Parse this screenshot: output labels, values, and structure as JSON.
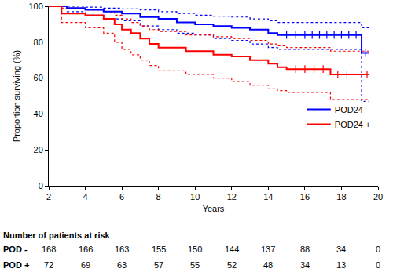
{
  "chart_data": {
    "type": "line",
    "x_label": "Years",
    "y_label": "Proportion surviving (%)",
    "xlim": [
      2,
      20
    ],
    "xticks": [
      2,
      4,
      6,
      8,
      10,
      12,
      14,
      16,
      18,
      20
    ],
    "ylim": [
      0,
      100
    ],
    "yticks": [
      0,
      20,
      40,
      60,
      80,
      100
    ],
    "grid": false,
    "legend": "lower right",
    "series": [
      {
        "name": "POD24 -",
        "color": "#0000ff",
        "line_style": "solid",
        "x": [
          2,
          3,
          4,
          5,
          6,
          7,
          8,
          9,
          10,
          11,
          12,
          13,
          14,
          14.5,
          19.1,
          19.5
        ],
        "values": [
          100,
          99,
          98,
          97,
          96,
          94,
          93,
          91,
          90,
          89,
          88,
          87,
          85,
          84,
          74,
          74
        ],
        "upper": [
          100,
          100,
          99.5,
          99,
          98.5,
          98,
          97,
          96,
          95,
          94.5,
          94,
          93,
          92,
          91,
          88,
          88
        ],
        "lower": [
          100,
          97,
          95,
          93,
          92,
          89,
          87,
          85,
          84,
          82,
          81,
          79,
          77,
          76,
          47,
          47
        ],
        "censored_x": [
          15,
          15.5,
          16,
          16.4,
          16.8,
          17.2,
          17.6,
          18,
          18.4,
          18.8,
          19.3
        ],
        "censored_values": [
          84,
          84,
          84,
          84,
          84,
          84,
          84,
          84,
          84,
          84,
          74
        ]
      },
      {
        "name": "POD24 +",
        "color": "#ff0000",
        "line_style": "solid",
        "x": [
          2,
          2.7,
          4,
          5,
          5.6,
          6,
          6.5,
          7,
          7.5,
          8,
          9.5,
          11,
          12,
          13,
          14,
          14.5,
          15,
          17.4,
          19.5
        ],
        "values": [
          100,
          96,
          95,
          93,
          90,
          87,
          85,
          82,
          79,
          77,
          75,
          73,
          72,
          70,
          68,
          66,
          65,
          62,
          62
        ],
        "upper": [
          100,
          99,
          98,
          97,
          95,
          93,
          91,
          89,
          87,
          86,
          84,
          83,
          82,
          81,
          79,
          78,
          77,
          75,
          75
        ],
        "lower": [
          100,
          91,
          88,
          85,
          80,
          76,
          73,
          70,
          67,
          64,
          62,
          60,
          58,
          56,
          54,
          53,
          52,
          48,
          48
        ],
        "censored_x": [
          15.5,
          16,
          16.5,
          17,
          17.8,
          18.3,
          19.4
        ],
        "censored_values": [
          65,
          65,
          65,
          65,
          62,
          62,
          62
        ]
      }
    ],
    "risk_table": {
      "title": "Number of patients at risk",
      "x": [
        2,
        4,
        6,
        8,
        10,
        12,
        14,
        16,
        18,
        20
      ],
      "rows": [
        {
          "label": "POD -",
          "values": [
            168,
            166,
            163,
            155,
            150,
            144,
            137,
            88,
            34,
            0
          ]
        },
        {
          "label": "POD +",
          "values": [
            72,
            69,
            63,
            57,
            55,
            52,
            48,
            34,
            13,
            0
          ]
        }
      ]
    }
  }
}
